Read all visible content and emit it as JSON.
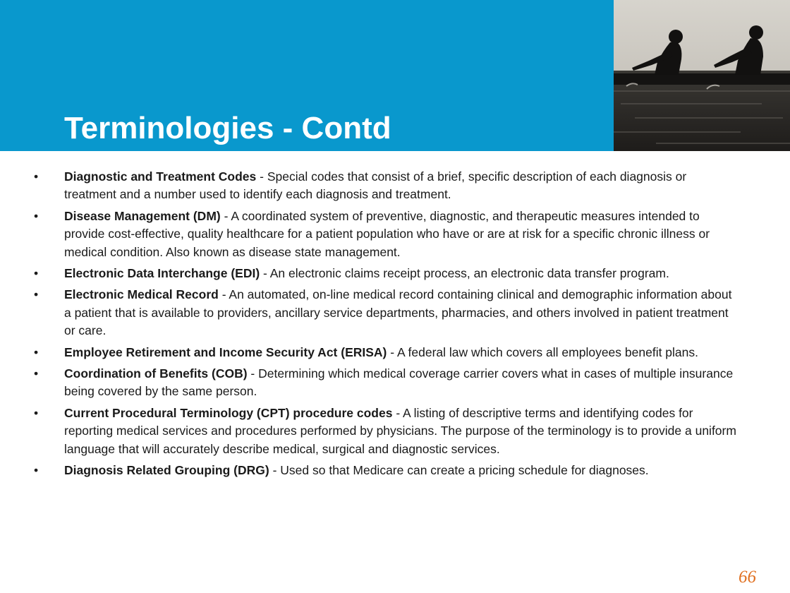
{
  "slide": {
    "title": "Terminologies - Contd",
    "page_number": "66"
  },
  "terms": [
    {
      "term": "Diagnostic and Treatment Codes",
      "definition": " - Special codes that consist of a brief, specific description of each diagnosis or treatment and a number used to identify each diagnosis and treatment."
    },
    {
      "term": "Disease Management (DM)",
      "definition": " - A coordinated system of preventive, diagnostic, and therapeutic measures intended to provide cost-effective, quality healthcare for a patient population who have or are at risk for a specific chronic illness or medical condition. Also known as disease state management."
    },
    {
      "term": "Electronic Data Interchange (EDI)",
      "definition": " - An electronic claims receipt process, an electronic data transfer program."
    },
    {
      "term": "Electronic Medical Record",
      "definition": " - An automated, on-line medical record containing clinical and demographic information about a patient that is available to providers, ancillary service departments, pharmacies, and others involved in patient treatment or care."
    },
    {
      "term": "Employee Retirement and Income Security Act (ERISA)",
      "definition": " - A federal law which covers all employees benefit plans."
    },
    {
      "term": "Coordination of Benefits (COB)",
      "definition": " - Determining which medical coverage carrier covers what in cases of multiple insurance being covered by the same person."
    },
    {
      "term": "Current Procedural Terminology (CPT) procedure codes",
      "definition": " - A listing of descriptive terms and identifying codes for reporting medical services and procedures performed by physicians. The purpose of the terminology is to provide a uniform language that will accurately describe medical, surgical and diagnostic services."
    },
    {
      "term": "Diagnosis Related Grouping (DRG)",
      "definition": " - Used so that Medicare can create a pricing schedule for diagnoses."
    }
  ],
  "colors": {
    "header_blue": "#0998cd",
    "title_text": "#ffffff",
    "page_number": "#e07020"
  },
  "icons": {
    "header_photo": "rowers-photo"
  }
}
